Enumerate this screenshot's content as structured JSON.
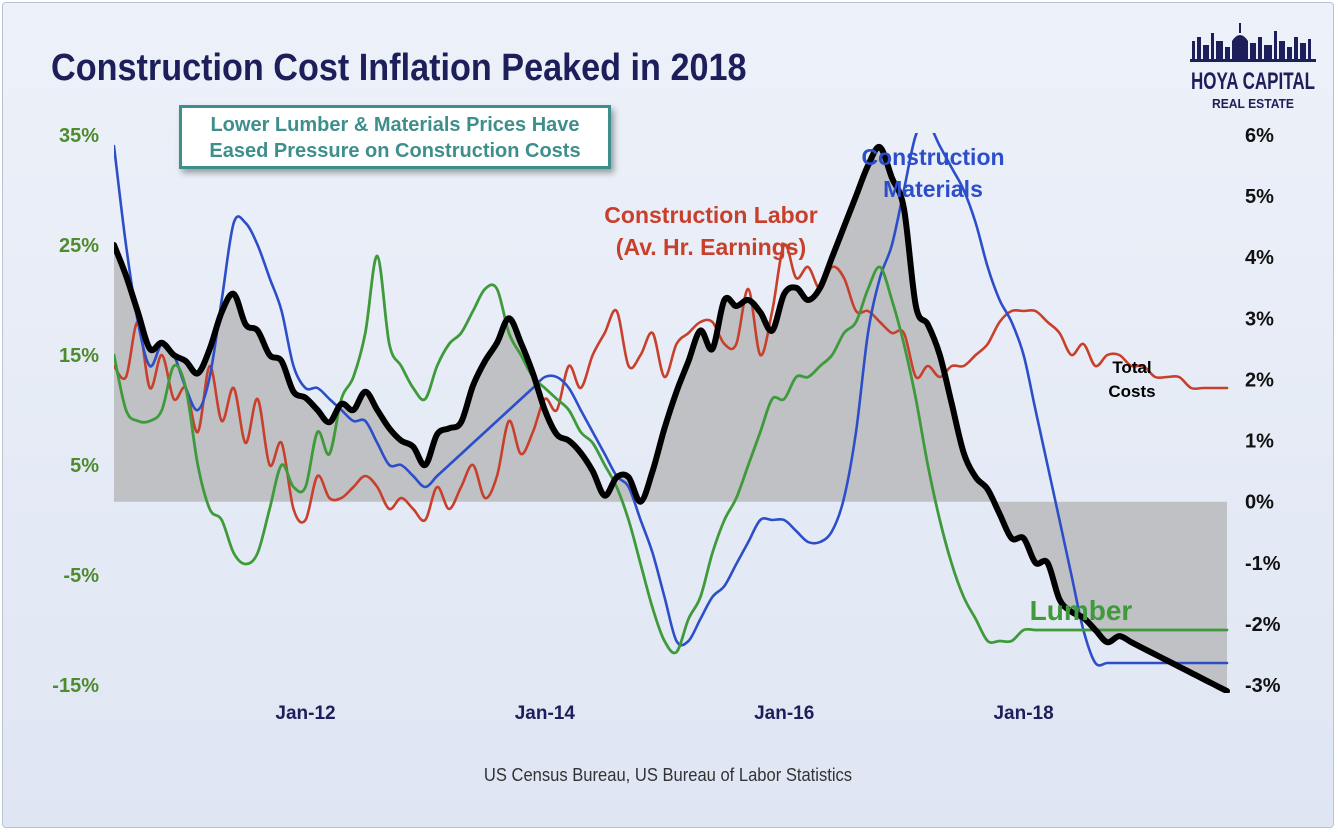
{
  "title": "Construction Cost Inflation Peaked in 2018",
  "callout": {
    "line1": "Lower Lumber & Materials Prices Have",
    "line2": "Eased Pressure on Construction Costs"
  },
  "logo": {
    "line1": "HOYA CAPITAL",
    "line2": "REAL ESTATE"
  },
  "source": "US Census Bureau, US Bureau of Labor Statistics",
  "colors": {
    "labor": "#c8402b",
    "materials": "#2c4fc9",
    "lumber": "#3e9a3a",
    "total": "#000000",
    "fill": "#bfc1c5",
    "left_axis": "#4e8a2e",
    "right_axis": "#111111",
    "x_axis": "#1d1f5a",
    "title": "#1d1f5a",
    "callout": "#3e8f8c"
  },
  "chart_data": {
    "type": "line",
    "left_axis": {
      "ticks": [
        "35%",
        "25%",
        "15%",
        "5%",
        "-5%",
        "-15%"
      ],
      "min": -15,
      "max": 35
    },
    "right_axis": {
      "ticks": [
        "6%",
        "5%",
        "4%",
        "3%",
        "2%",
        "1%",
        "0%",
        "-1%",
        "-2%",
        "-3%"
      ],
      "min": -3,
      "max": 6
    },
    "x_range": [
      2010.4,
      2019.75
    ],
    "x_ticks": [
      "Jan-12",
      "Jan-14",
      "Jan-16",
      "Jan-18"
    ],
    "grid": false,
    "annotations": [
      {
        "key": "labor",
        "lines": [
          "Construction Labor",
          "(Av. Hr. Earnings)"
        ]
      },
      {
        "key": "materials",
        "lines": [
          "Construction",
          "Materials"
        ]
      },
      {
        "key": "total",
        "lines": [
          "Total",
          "Costs"
        ]
      },
      {
        "key": "lumber",
        "lines": [
          "Lumber"
        ]
      }
    ],
    "series": [
      {
        "key": "total",
        "axis": "right",
        "x": [
          2010.4,
          2010.5,
          2010.6,
          2010.7,
          2010.8,
          2010.9,
          2011.0,
          2011.1,
          2011.2,
          2011.3,
          2011.4,
          2011.5,
          2011.6,
          2011.7,
          2011.8,
          2011.9,
          2012.0,
          2012.1,
          2012.2,
          2012.3,
          2012.4,
          2012.5,
          2012.6,
          2012.7,
          2012.8,
          2012.9,
          2013.0,
          2013.1,
          2013.2,
          2013.3,
          2013.4,
          2013.5,
          2013.6,
          2013.7,
          2013.8,
          2013.9,
          2014.0,
          2014.1,
          2014.2,
          2014.3,
          2014.4,
          2014.5,
          2014.6,
          2014.7,
          2014.8,
          2014.9,
          2015.0,
          2015.1,
          2015.2,
          2015.3,
          2015.4,
          2015.5,
          2015.6,
          2015.7,
          2015.8,
          2015.9,
          2016.0,
          2016.1,
          2016.2,
          2016.3,
          2016.4,
          2016.5,
          2016.6,
          2016.7,
          2016.8,
          2016.9,
          2017.0,
          2017.1,
          2017.2,
          2017.3,
          2017.4,
          2017.5,
          2017.6,
          2017.7,
          2017.8,
          2017.9,
          2018.0,
          2018.1,
          2018.2,
          2018.3,
          2018.4,
          2018.5,
          2018.6,
          2018.7,
          2018.8,
          2018.9,
          2019.0,
          2019.1,
          2019.2,
          2019.3,
          2019.4,
          2019.5,
          2019.6,
          2019.7
        ],
        "values": [
          4.2,
          3.7,
          3.1,
          2.5,
          2.6,
          2.4,
          2.3,
          2.1,
          2.5,
          3.1,
          3.4,
          2.9,
          2.8,
          2.4,
          2.3,
          1.8,
          1.7,
          1.5,
          1.3,
          1.6,
          1.5,
          1.8,
          1.5,
          1.2,
          1.0,
          0.9,
          0.6,
          1.1,
          1.2,
          1.3,
          1.9,
          2.3,
          2.6,
          3.0,
          2.6,
          2.1,
          1.5,
          1.1,
          1.0,
          0.8,
          0.5,
          0.1,
          0.4,
          0.4,
          0.0,
          0.5,
          1.2,
          1.8,
          2.3,
          2.8,
          2.5,
          3.3,
          3.2,
          3.3,
          3.1,
          2.8,
          3.4,
          3.5,
          3.3,
          3.5,
          4.0,
          4.5,
          5.0,
          5.5,
          5.8,
          5.3,
          4.8,
          3.2,
          2.9,
          2.4,
          1.6,
          0.8,
          0.4,
          0.2,
          -0.2,
          -0.6,
          -0.6,
          -1.0,
          -1.0,
          -1.6,
          -1.8,
          -1.9,
          -2.1,
          -2.3,
          -2.2,
          -2.3,
          -2.4,
          -2.5,
          -2.6,
          -2.7,
          -2.8,
          -2.9,
          -3.0,
          -3.1
        ]
      },
      {
        "key": "labor",
        "axis": "left",
        "x": [
          2010.4,
          2010.5,
          2010.6,
          2010.7,
          2010.8,
          2010.9,
          2011.0,
          2011.1,
          2011.2,
          2011.3,
          2011.4,
          2011.5,
          2011.6,
          2011.7,
          2011.8,
          2011.9,
          2012.0,
          2012.1,
          2012.2,
          2012.3,
          2012.4,
          2012.5,
          2012.6,
          2012.7,
          2012.8,
          2012.9,
          2013.0,
          2013.1,
          2013.2,
          2013.3,
          2013.4,
          2013.5,
          2013.6,
          2013.7,
          2013.8,
          2013.9,
          2014.0,
          2014.1,
          2014.2,
          2014.3,
          2014.4,
          2014.5,
          2014.6,
          2014.7,
          2014.8,
          2014.9,
          2015.0,
          2015.1,
          2015.2,
          2015.3,
          2015.4,
          2015.5,
          2015.6,
          2015.7,
          2015.8,
          2015.9,
          2016.0,
          2016.1,
          2016.2,
          2016.3,
          2016.4,
          2016.5,
          2016.6,
          2016.7,
          2016.8,
          2016.9,
          2017.0,
          2017.1,
          2017.2,
          2017.3,
          2017.4,
          2017.5,
          2017.6,
          2017.7,
          2017.8,
          2017.9,
          2018.0,
          2018.1,
          2018.2,
          2018.3,
          2018.4,
          2018.5,
          2018.6,
          2018.7,
          2018.8,
          2018.9,
          2019.0,
          2019.1,
          2019.2,
          2019.3,
          2019.4,
          2019.5,
          2019.6,
          2019.7
        ],
        "values": [
          14,
          13,
          18,
          12,
          15,
          11,
          12,
          8,
          14,
          9,
          12,
          7,
          11,
          5,
          7,
          1,
          0,
          4,
          2,
          2,
          3,
          4,
          3,
          1,
          2,
          1,
          0,
          3,
          1,
          3,
          5,
          2,
          4,
          9,
          6,
          8,
          11,
          10,
          14,
          12,
          15,
          17,
          19,
          14,
          15,
          17,
          13,
          16,
          17,
          18,
          18,
          16,
          16,
          21,
          15,
          19,
          25,
          22,
          23,
          21,
          23,
          22,
          19,
          19,
          18,
          17,
          17,
          13,
          14,
          13,
          14,
          14,
          15,
          16,
          18,
          19,
          19,
          19,
          18,
          17,
          15,
          16,
          14,
          15,
          15,
          14,
          14,
          13,
          13,
          13,
          12,
          12,
          12,
          12
        ]
      },
      {
        "key": "materials",
        "axis": "left",
        "x": [
          2010.4,
          2010.5,
          2010.6,
          2010.7,
          2010.8,
          2010.9,
          2011.0,
          2011.1,
          2011.2,
          2011.3,
          2011.4,
          2011.5,
          2011.6,
          2011.7,
          2011.8,
          2011.9,
          2012.0,
          2012.1,
          2012.2,
          2012.3,
          2012.4,
          2012.5,
          2012.6,
          2012.7,
          2012.8,
          2012.9,
          2013.0,
          2013.1,
          2013.2,
          2013.3,
          2013.4,
          2013.5,
          2013.6,
          2013.7,
          2013.8,
          2013.9,
          2014.0,
          2014.1,
          2014.2,
          2014.3,
          2014.4,
          2014.5,
          2014.6,
          2014.7,
          2014.8,
          2014.9,
          2015.0,
          2015.1,
          2015.2,
          2015.3,
          2015.4,
          2015.5,
          2015.6,
          2015.7,
          2015.8,
          2015.9,
          2016.0,
          2016.1,
          2016.2,
          2016.3,
          2016.4,
          2016.5,
          2016.6,
          2016.7,
          2016.8,
          2016.9,
          2017.0,
          2017.1,
          2017.2,
          2017.3,
          2017.4,
          2017.5,
          2017.6,
          2017.7,
          2017.8,
          2017.9,
          2018.0,
          2018.1,
          2018.2,
          2018.3,
          2018.4,
          2018.5,
          2018.6,
          2018.7,
          2018.8,
          2018.9,
          2019.0,
          2019.1,
          2019.2,
          2019.3,
          2019.4,
          2019.5,
          2019.6,
          2019.7
        ],
        "values": [
          34,
          25,
          18,
          14,
          16,
          15,
          12,
          10,
          13,
          20,
          27,
          27,
          25,
          22,
          19,
          14,
          12,
          12,
          11,
          10,
          9,
          9,
          7,
          5,
          5,
          4,
          3,
          4,
          5,
          6,
          7,
          8,
          9,
          10,
          11,
          12,
          13,
          13,
          12,
          10,
          8,
          6,
          4,
          3,
          0,
          -3,
          -7,
          -11,
          -11,
          -9,
          -7,
          -6,
          -4,
          -2,
          0,
          0,
          0,
          -1,
          -2,
          -2,
          -1,
          2,
          8,
          17,
          22,
          25,
          30,
          35,
          36,
          34,
          32,
          30,
          27,
          23,
          20,
          18,
          15,
          10,
          5,
          0,
          -5,
          -10,
          -13,
          -13,
          -13,
          -13,
          -13,
          -13,
          -13,
          -13,
          -13,
          -13,
          -13,
          -13
        ]
      },
      {
        "key": "lumber",
        "axis": "left",
        "x": [
          2010.4,
          2010.5,
          2010.6,
          2010.7,
          2010.8,
          2010.9,
          2011.0,
          2011.1,
          2011.2,
          2011.3,
          2011.4,
          2011.5,
          2011.6,
          2011.7,
          2011.8,
          2011.9,
          2012.0,
          2012.1,
          2012.2,
          2012.3,
          2012.4,
          2012.5,
          2012.6,
          2012.7,
          2012.8,
          2012.9,
          2013.0,
          2013.1,
          2013.2,
          2013.3,
          2013.4,
          2013.5,
          2013.6,
          2013.7,
          2013.8,
          2013.9,
          2014.0,
          2014.1,
          2014.2,
          2014.3,
          2014.4,
          2014.5,
          2014.6,
          2014.7,
          2014.8,
          2014.9,
          2015.0,
          2015.1,
          2015.2,
          2015.3,
          2015.4,
          2015.5,
          2015.6,
          2015.7,
          2015.8,
          2015.9,
          2016.0,
          2016.1,
          2016.2,
          2016.3,
          2016.4,
          2016.5,
          2016.6,
          2016.7,
          2016.8,
          2016.9,
          2017.0,
          2017.1,
          2017.2,
          2017.3,
          2017.4,
          2017.5,
          2017.6,
          2017.7,
          2017.8,
          2017.9,
          2018.0,
          2018.1,
          2018.2,
          2018.3,
          2018.4,
          2018.5,
          2018.6,
          2018.7,
          2018.8,
          2018.9,
          2019.0,
          2019.1,
          2019.2,
          2019.3,
          2019.4,
          2019.5,
          2019.6,
          2019.7
        ],
        "values": [
          15,
          10,
          9,
          9,
          10,
          14,
          12,
          5,
          1,
          0,
          -3,
          -4,
          -3,
          1,
          5,
          3,
          3,
          8,
          6,
          11,
          13,
          17,
          24,
          16,
          14,
          12,
          11,
          14,
          16,
          17,
          19,
          21,
          21,
          17,
          15,
          13,
          12,
          11,
          10,
          8,
          7,
          5,
          3,
          0,
          -4,
          -8,
          -11,
          -12,
          -9,
          -7,
          -3,
          0,
          2,
          5,
          8,
          11,
          11,
          13,
          13,
          14,
          15,
          17,
          18,
          21,
          23,
          20,
          16,
          11,
          5,
          0,
          -4,
          -7,
          -9,
          -11,
          -11,
          -11,
          -10,
          -10,
          -10,
          -10,
          -10,
          -10,
          -10,
          -10,
          -10,
          -10,
          -10,
          -10,
          -10,
          -10,
          -10,
          -10,
          -10,
          -10
        ]
      }
    ]
  }
}
